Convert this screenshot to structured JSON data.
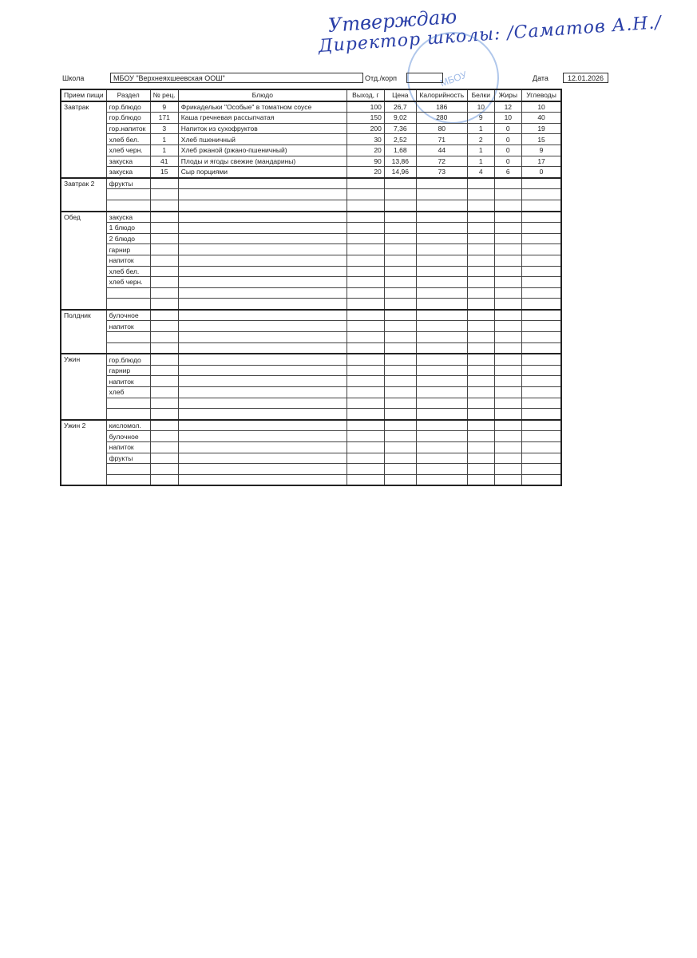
{
  "approval": {
    "title": "Утверждаю",
    "signature": "Директор школы: /Саматов А.Н./"
  },
  "stamp": {
    "text": "МБОУ"
  },
  "header": {
    "school_label": "Школа",
    "school_value": "МБОУ \"Верхнеяхшеевская ООШ\"",
    "dept_label": "Отд./корп",
    "dept_value": "",
    "date_label": "Дата",
    "date_value": "12.01.2026"
  },
  "columns": [
    "Прием пищи",
    "Раздел",
    "№ рец.",
    "Блюдо",
    "Выход, г",
    "Цена",
    "Калорийность",
    "Белки",
    "Жиры",
    "Углеводы"
  ],
  "sections": [
    {
      "meal": "Завтрак",
      "rows": [
        [
          "гор.блюдо",
          "9",
          "Фрикадельки \"Особые\" в томатном соусе",
          "100",
          "26,7",
          "186",
          "10",
          "12",
          "10"
        ],
        [
          "гор.блюдо",
          "171",
          "Каша гречневая рассыпчатая",
          "150",
          "9,02",
          "280",
          "9",
          "10",
          "40"
        ],
        [
          "гор.напиток",
          "3",
          "Напиток из  сухофруктов",
          "200",
          "7,36",
          "80",
          "1",
          "0",
          "19"
        ],
        [
          "хлеб бел.",
          "1",
          "Хлеб пшеничный",
          "30",
          "2,52",
          "71",
          "2",
          "0",
          "15"
        ],
        [
          "хлеб черн.",
          "1",
          "Хлеб ржаной (ржано-пшеничный)",
          "20",
          "1,68",
          "44",
          "1",
          "0",
          "9"
        ],
        [
          "закуска",
          "41",
          "Плоды и ягоды свежие (мандарины)",
          "90",
          "13,86",
          "72",
          "1",
          "0",
          "17"
        ],
        [
          "закуска",
          "15",
          "Сыр порциями",
          "20",
          "14,96",
          "73",
          "4",
          "6",
          "0"
        ]
      ]
    },
    {
      "meal": "Завтрак 2",
      "rows": [
        [
          "фрукты"
        ],
        [
          ""
        ],
        [
          ""
        ]
      ]
    },
    {
      "meal": "Обед",
      "rows": [
        [
          "закуска"
        ],
        [
          "1 блюдо"
        ],
        [
          "2 блюдо"
        ],
        [
          "гарнир"
        ],
        [
          "напиток"
        ],
        [
          "хлеб бел."
        ],
        [
          "хлеб черн."
        ],
        [
          ""
        ],
        [
          ""
        ]
      ]
    },
    {
      "meal": "Полдник",
      "rows": [
        [
          "булочное"
        ],
        [
          "напиток"
        ],
        [
          ""
        ],
        [
          ""
        ]
      ]
    },
    {
      "meal": "Ужин",
      "rows": [
        [
          "гор.блюдо"
        ],
        [
          "гарнир"
        ],
        [
          "напиток"
        ],
        [
          "хлеб"
        ],
        [
          ""
        ],
        [
          ""
        ]
      ]
    },
    {
      "meal": "Ужин 2",
      "rows": [
        [
          "кисломол."
        ],
        [
          "булочное"
        ],
        [
          "напиток"
        ],
        [
          "фрукты"
        ],
        [
          ""
        ],
        [
          ""
        ]
      ]
    }
  ]
}
